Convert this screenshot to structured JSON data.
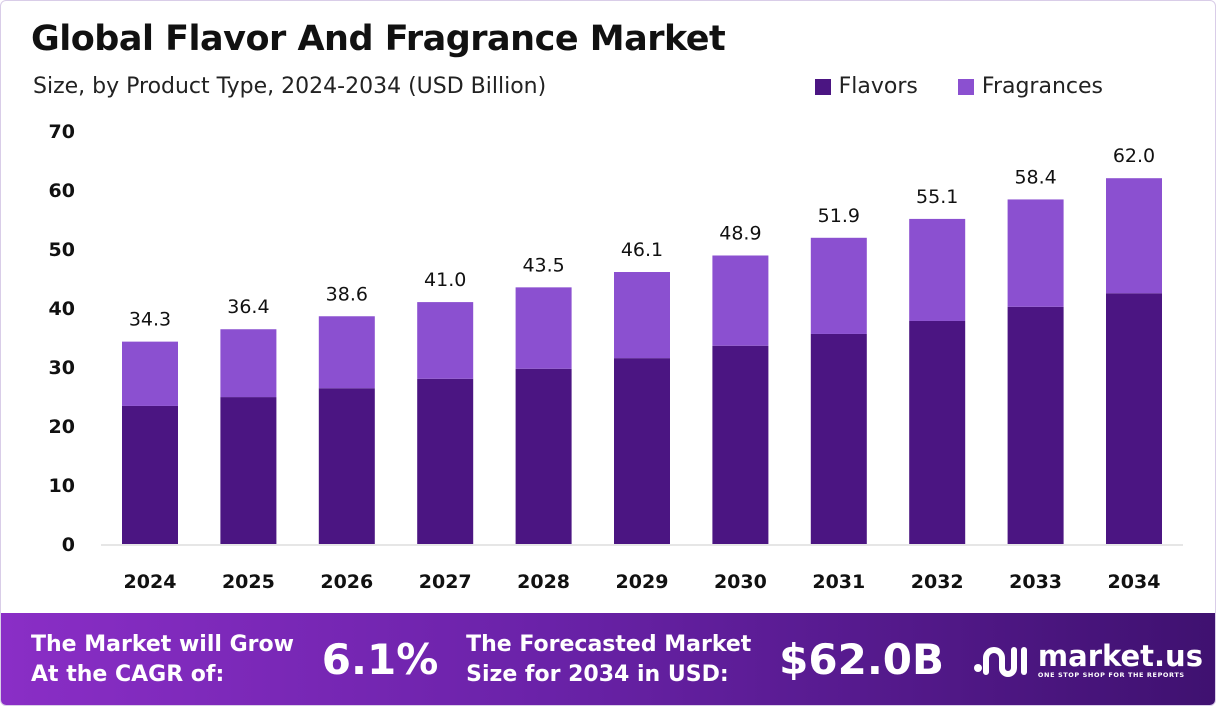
{
  "chart_data": {
    "type": "bar",
    "stacked": true,
    "title": "Global Flavor And Fragrance Market",
    "subtitle": "Size, by Product Type, 2024-2034 (USD Billion)",
    "categories": [
      "2024",
      "2025",
      "2026",
      "2027",
      "2028",
      "2029",
      "2030",
      "2031",
      "2032",
      "2033",
      "2034"
    ],
    "series": [
      {
        "name": "Flavors",
        "color": "#4b1582",
        "values": [
          23.4,
          24.9,
          26.4,
          28.0,
          29.7,
          31.5,
          33.6,
          35.6,
          37.8,
          40.2,
          42.5
        ]
      },
      {
        "name": "Fragrances",
        "color": "#8b50d0",
        "values": [
          10.9,
          11.5,
          12.2,
          13.0,
          13.8,
          14.6,
          15.3,
          16.3,
          17.3,
          18.2,
          19.5
        ]
      }
    ],
    "totals": [
      "34.3",
      "36.4",
      "38.6",
      "41.0",
      "43.5",
      "46.1",
      "48.9",
      "51.9",
      "55.1",
      "58.4",
      "62.0"
    ],
    "yticks": [
      "0",
      "10",
      "20",
      "30",
      "40",
      "50",
      "60",
      "70"
    ],
    "ylim": [
      0,
      70
    ],
    "grid": false,
    "legend_position": "top-right"
  },
  "banner": {
    "cagr_label_1": "The Market will Grow",
    "cagr_label_2": "At the CAGR of:",
    "cagr_value": "6.1%",
    "forecast_label_1": "The Forecasted Market",
    "forecast_label_2": "Size for 2034 in USD:",
    "forecast_value": "$62.0B"
  },
  "logo": {
    "name": "market.us",
    "tagline": "ONE STOP SHOP FOR THE REPORTS"
  }
}
